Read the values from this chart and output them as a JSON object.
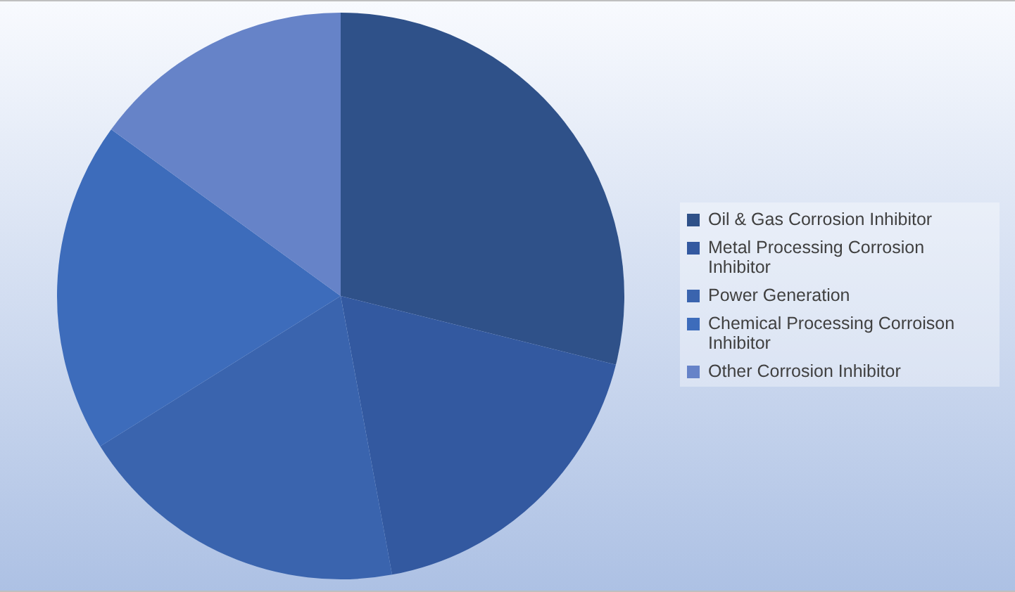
{
  "chart_data": {
    "type": "pie",
    "categories": [
      "Oil & Gas Corrosion Inhibitor",
      "Metal Processing Corrosion Inhibitor",
      "Power Generation",
      "Chemical Processing Corroison Inhibitor",
      "Other Corrosion Inhibitor"
    ],
    "values": [
      28.9,
      18.2,
      19.0,
      18.9,
      15.0
    ],
    "colors": [
      "#2f5189",
      "#3359a0",
      "#3a64ae",
      "#3d6cbb",
      "#6683c8"
    ],
    "legend": "right"
  }
}
